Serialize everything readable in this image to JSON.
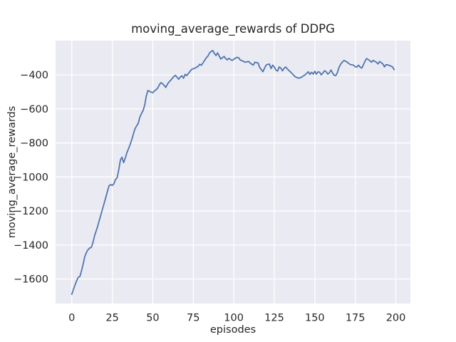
{
  "figure": {
    "background": "#ffffff"
  },
  "chart_data": {
    "type": "line",
    "title": "moving_average_rewards of DDPG",
    "xlabel": "episodes",
    "ylabel": "moving_average_rewards",
    "legend": "none",
    "grid": true,
    "xlim": [
      -10,
      209
    ],
    "ylim": [
      -1744,
      -199
    ],
    "xticks": [
      0,
      25,
      50,
      75,
      100,
      125,
      150,
      175,
      200
    ],
    "xtick_labels": [
      "0",
      "25",
      "50",
      "75",
      "100",
      "125",
      "150",
      "175",
      "200"
    ],
    "yticks": [
      -400,
      -600,
      -800,
      -1000,
      -1200,
      -1400,
      -1600
    ],
    "ytick_labels": [
      "−400",
      "−600",
      "−800",
      "−1000",
      "−1200",
      "−1400",
      "−1600"
    ],
    "series_name": "moving average reward",
    "x": [
      0,
      1,
      2,
      3,
      4,
      5,
      6,
      7,
      8,
      9,
      10,
      11,
      12,
      13,
      14,
      15,
      16,
      17,
      18,
      19,
      20,
      21,
      22,
      23,
      24,
      25,
      26,
      27,
      28,
      29,
      30,
      31,
      32,
      33,
      34,
      35,
      36,
      37,
      38,
      39,
      40,
      41,
      42,
      43,
      44,
      45,
      46,
      47,
      48,
      49,
      50,
      51,
      52,
      53,
      54,
      55,
      56,
      57,
      58,
      59,
      60,
      61,
      62,
      63,
      64,
      65,
      66,
      67,
      68,
      69,
      70,
      71,
      72,
      73,
      74,
      75,
      76,
      77,
      78,
      79,
      80,
      81,
      82,
      83,
      84,
      85,
      86,
      87,
      88,
      89,
      90,
      91,
      92,
      93,
      94,
      95,
      96,
      97,
      98,
      99,
      100,
      101,
      102,
      103,
      104,
      105,
      106,
      107,
      108,
      109,
      110,
      111,
      112,
      113,
      114,
      115,
      116,
      117,
      118,
      119,
      120,
      121,
      122,
      123,
      124,
      125,
      126,
      127,
      128,
      129,
      130,
      131,
      132,
      133,
      134,
      135,
      136,
      137,
      138,
      139,
      140,
      141,
      142,
      143,
      144,
      145,
      146,
      147,
      148,
      149,
      150,
      151,
      152,
      153,
      154,
      155,
      156,
      157,
      158,
      159,
      160,
      161,
      162,
      163,
      164,
      165,
      166,
      167,
      168,
      169,
      170,
      171,
      172,
      173,
      174,
      175,
      176,
      177,
      178,
      179,
      180,
      181,
      182,
      183,
      184,
      185,
      186,
      187,
      188,
      189,
      190,
      191,
      192,
      193,
      194,
      195,
      196,
      197,
      198,
      199
    ],
    "y": [
      -1690,
      -1662,
      -1635,
      -1610,
      -1590,
      -1585,
      -1552,
      -1512,
      -1470,
      -1445,
      -1428,
      -1418,
      -1415,
      -1388,
      -1348,
      -1320,
      -1290,
      -1255,
      -1222,
      -1188,
      -1155,
      -1120,
      -1085,
      -1052,
      -1045,
      -1050,
      -1040,
      -1015,
      -1005,
      -958,
      -900,
      -884,
      -916,
      -890,
      -858,
      -835,
      -810,
      -782,
      -748,
      -718,
      -700,
      -685,
      -650,
      -628,
      -610,
      -578,
      -525,
      -492,
      -497,
      -502,
      -505,
      -495,
      -488,
      -478,
      -460,
      -446,
      -452,
      -462,
      -474,
      -456,
      -442,
      -433,
      -421,
      -410,
      -403,
      -415,
      -426,
      -412,
      -406,
      -420,
      -397,
      -404,
      -392,
      -380,
      -368,
      -364,
      -361,
      -355,
      -350,
      -338,
      -344,
      -330,
      -315,
      -300,
      -290,
      -272,
      -263,
      -257,
      -274,
      -287,
      -271,
      -290,
      -307,
      -299,
      -292,
      -305,
      -312,
      -303,
      -310,
      -316,
      -308,
      -303,
      -297,
      -300,
      -313,
      -317,
      -321,
      -326,
      -324,
      -321,
      -330,
      -337,
      -343,
      -326,
      -328,
      -331,
      -356,
      -370,
      -382,
      -360,
      -343,
      -338,
      -337,
      -363,
      -343,
      -355,
      -372,
      -378,
      -354,
      -360,
      -377,
      -362,
      -354,
      -365,
      -375,
      -383,
      -393,
      -403,
      -412,
      -416,
      -420,
      -417,
      -413,
      -406,
      -400,
      -391,
      -382,
      -398,
      -385,
      -396,
      -379,
      -396,
      -382,
      -385,
      -400,
      -390,
      -376,
      -382,
      -396,
      -388,
      -372,
      -390,
      -403,
      -404,
      -385,
      -355,
      -337,
      -325,
      -316,
      -320,
      -326,
      -334,
      -340,
      -341,
      -344,
      -353,
      -354,
      -343,
      -355,
      -360,
      -340,
      -320,
      -304,
      -311,
      -318,
      -326,
      -315,
      -321,
      -326,
      -336,
      -322,
      -329,
      -336,
      -353,
      -340,
      -341,
      -345,
      -349,
      -354,
      -370
    ],
    "style": {
      "line_color": "#4c72b0",
      "axes_bg": "#eaeaf2",
      "grid_color": "#ffffff",
      "text_color": "#262626",
      "figure_bg": "#ffffff"
    }
  }
}
